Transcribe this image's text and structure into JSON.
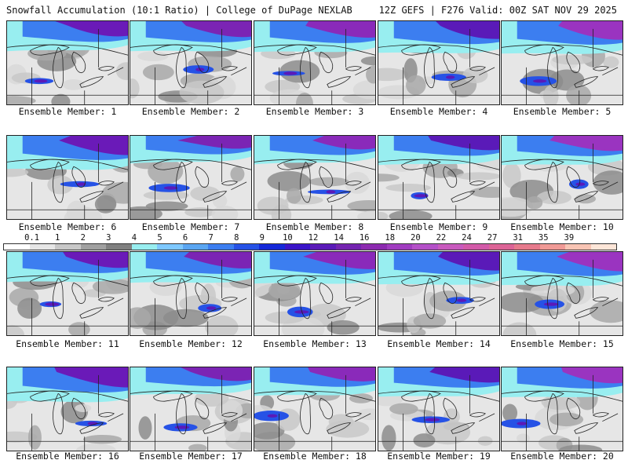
{
  "header": {
    "title_left": "Snowfall Accumulation (10:1 Ratio) | College of DuPage NEXLAB",
    "title_right": "12Z GEFS | F276 Valid: 00Z SAT NOV 29 2025"
  },
  "legend": {
    "ticks": [
      "0.1",
      "1",
      "2",
      "3",
      "4",
      "5",
      "6",
      "7",
      "8",
      "9",
      "10",
      "12",
      "14",
      "16",
      "18",
      "20",
      "22",
      "24",
      "27",
      "31",
      "35",
      "39"
    ],
    "colors": [
      "#ffffff",
      "#e6e6e6",
      "#c8c8c8",
      "#a0a0a0",
      "#808080",
      "#98eef0",
      "#7ec8ff",
      "#5aa6f2",
      "#3c7ef0",
      "#2652e6",
      "#1428d8",
      "#3a14c8",
      "#5a1ab8",
      "#7424b0",
      "#8c2ab0",
      "#a03cc0",
      "#b450c8",
      "#c85abe",
      "#d25aa8",
      "#dc6496",
      "#e67a8c",
      "#f09a96",
      "#f8c4b4",
      "#fde6d8"
    ]
  },
  "members": [
    {
      "label": "Ensemble Member: 1"
    },
    {
      "label": "Ensemble Member: 2"
    },
    {
      "label": "Ensemble Member: 3"
    },
    {
      "label": "Ensemble Member: 4"
    },
    {
      "label": "Ensemble Member: 5"
    },
    {
      "label": "Ensemble Member: 6"
    },
    {
      "label": "Ensemble Member: 7"
    },
    {
      "label": "Ensemble Member: 8"
    },
    {
      "label": "Ensemble Member: 9"
    },
    {
      "label": "Ensemble Member: 10"
    },
    {
      "label": "Ensemble Member: 11"
    },
    {
      "label": "Ensemble Member: 12"
    },
    {
      "label": "Ensemble Member: 13"
    },
    {
      "label": "Ensemble Member: 14"
    },
    {
      "label": "Ensemble Member: 15"
    },
    {
      "label": "Ensemble Member: 16"
    },
    {
      "label": "Ensemble Member: 17"
    },
    {
      "label": "Ensemble Member: 18"
    },
    {
      "label": "Ensemble Member: 19"
    },
    {
      "label": "Ensemble Member: 20"
    }
  ]
}
